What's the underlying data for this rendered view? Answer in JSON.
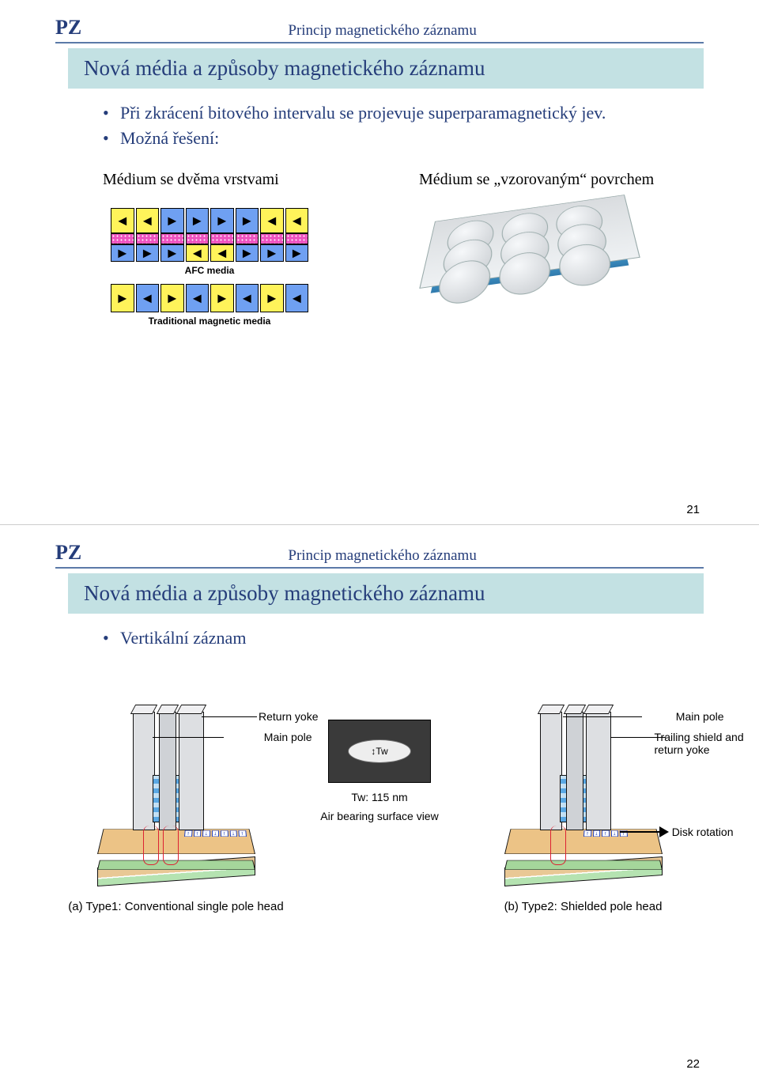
{
  "colors": {
    "header_text": "#253d7a",
    "header_rule": "#5b7aa8",
    "titlebar_bg": "#c3e1e3",
    "bullet_text": "#253d7a",
    "page_bg": "#ffffff",
    "media_top": "#ecc386",
    "media_bottom": "#a5d69b",
    "coil_blue": "#5aa8e4",
    "flux_red": "#d23333",
    "slab_blue": "#4aa5d6",
    "cell_yellow": "#fff35a",
    "cell_blue": "#6fa0f2",
    "cell_pink": "#ee54c0"
  },
  "slide21": {
    "brand": "PZ",
    "subheader": "Princip magnetického záznamu",
    "title": "Nová média a způsoby magnetického záznamu",
    "bullets": [
      "Při zkrácení bitového intervalu se projevuje superparamagnetický jev.",
      "Možná řešení:"
    ],
    "left_label": "Médium se dvěma vrstvami",
    "right_label": "Médium se „vzorovaným“ povrchem",
    "left_caption_top": "AFC media",
    "left_caption_bottom": "Traditional magnetic media",
    "top_row_colors": [
      "ylw",
      "ylw",
      "blu",
      "blu",
      "blu",
      "blu",
      "ylw",
      "ylw"
    ],
    "top_row_dirs": [
      "l",
      "l",
      "r",
      "r",
      "r",
      "r",
      "l",
      "l"
    ],
    "under_row_colors": [
      "blu",
      "blu",
      "blu",
      "ylw",
      "ylw",
      "blu",
      "blu",
      "blu"
    ],
    "under_row_dirs": [
      "r",
      "r",
      "r",
      "l",
      "l",
      "r",
      "r",
      "r"
    ],
    "trad_colors": [
      "ylw",
      "blu",
      "ylw",
      "blu",
      "ylw",
      "blu",
      "ylw",
      "blu"
    ],
    "trad_dirs": [
      "r",
      "l",
      "r",
      "l",
      "r",
      "l",
      "r",
      "l"
    ],
    "page_number": "21"
  },
  "slide22": {
    "brand": "PZ",
    "subheader": "Princip magnetického záznamu",
    "title": "Nová média a způsoby magnetického záznamu",
    "bullets": [
      "Vertikální záznam"
    ],
    "left": {
      "label_return": "Return yoke",
      "label_main": "Main pole",
      "caption": "(a) Type1: Conventional single pole head"
    },
    "mid": {
      "tw_value": "Tw: 115 nm",
      "abs_label": "Air bearing surface view",
      "tw_symbol": "↕Tw"
    },
    "right": {
      "label_main": "Main pole",
      "label_trail": "Trailing shield and return yoke",
      "disk_rot": "Disk rotation",
      "caption": "(b) Type2: Shielded pole head"
    },
    "page_number": "22"
  }
}
